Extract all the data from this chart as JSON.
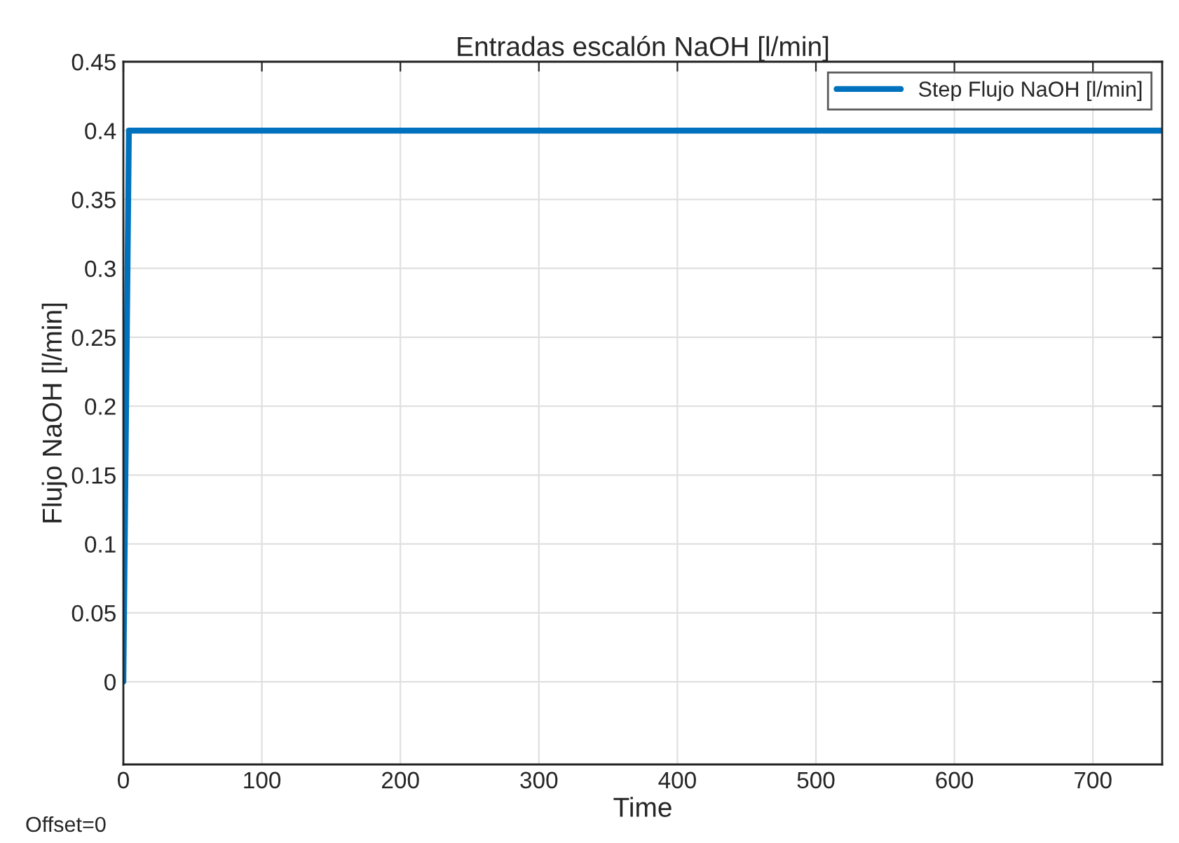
{
  "chart_data": {
    "type": "line",
    "title": "Entradas escalón NaOH [l/min]",
    "xlabel": "Time",
    "ylabel": "Flujo NaOH [l/min]",
    "annotations": [
      "Offset=0"
    ],
    "series": [
      {
        "name": "Step Flujo NaOH [l/min]",
        "color": "#0072bd",
        "x": [
          0,
          4,
          750
        ],
        "values": [
          0,
          0.4,
          0.4
        ]
      }
    ],
    "xlim": [
      0,
      750
    ],
    "ylim": [
      -0.06,
      0.45
    ],
    "xticks": [
      0,
      100,
      200,
      300,
      400,
      500,
      600,
      700
    ],
    "yticks": [
      0,
      0.05,
      0.1,
      0.15,
      0.2,
      0.25,
      0.3,
      0.35,
      0.4,
      0.45
    ],
    "grid": true,
    "legend": "top right",
    "line_style": "solid",
    "marker": "none"
  }
}
